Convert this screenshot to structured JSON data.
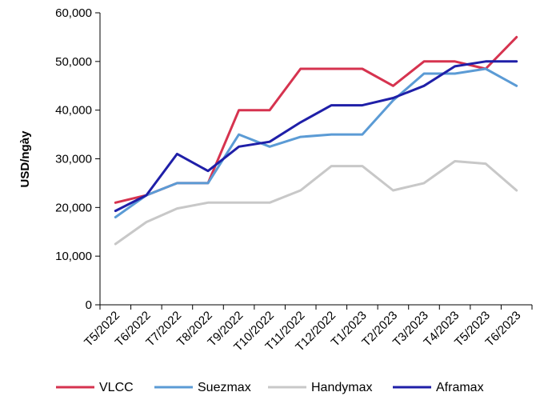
{
  "chart_data": {
    "type": "line",
    "title": "",
    "xlabel": "",
    "ylabel": "USD/ngày",
    "ylim": [
      0,
      60000
    ],
    "yticks": [
      0,
      10000,
      20000,
      30000,
      40000,
      50000,
      60000
    ],
    "ytick_labels": [
      "0",
      "10,000",
      "20,000",
      "30,000",
      "40,000",
      "50,000",
      "60,000"
    ],
    "grid": false,
    "legend_position": "bottom",
    "categories": [
      "T5/2022",
      "T6/2022",
      "T7/2022",
      "T8/2022",
      "T9/2022",
      "T10/2022",
      "T11/2022",
      "T12/2022",
      "T1/2023",
      "T2/2023",
      "T3/2023",
      "T4/2023",
      "T5/2023",
      "T6/2023"
    ],
    "series": [
      {
        "name": "VLCC",
        "color": "#d6334f",
        "values": [
          21000,
          22500,
          25000,
          25000,
          40000,
          40000,
          48500,
          48500,
          48500,
          45000,
          50000,
          50000,
          48500,
          55000
        ]
      },
      {
        "name": "Suezmax",
        "color": "#5b9bd5",
        "values": [
          18000,
          22500,
          25000,
          25000,
          35000,
          32500,
          34500,
          35000,
          35000,
          42000,
          47500,
          47500,
          48500,
          45000
        ]
      },
      {
        "name": "Handymax",
        "color": "#c8c8c8",
        "values": [
          12500,
          17000,
          19800,
          21000,
          21000,
          21000,
          23500,
          28500,
          28500,
          23500,
          25000,
          29500,
          29000,
          23500
        ]
      },
      {
        "name": "Aframax",
        "color": "#1f1fa8",
        "values": [
          19300,
          22500,
          31000,
          27500,
          32500,
          33500,
          37500,
          41000,
          41000,
          42500,
          45000,
          49000,
          50000,
          50000
        ]
      }
    ]
  }
}
